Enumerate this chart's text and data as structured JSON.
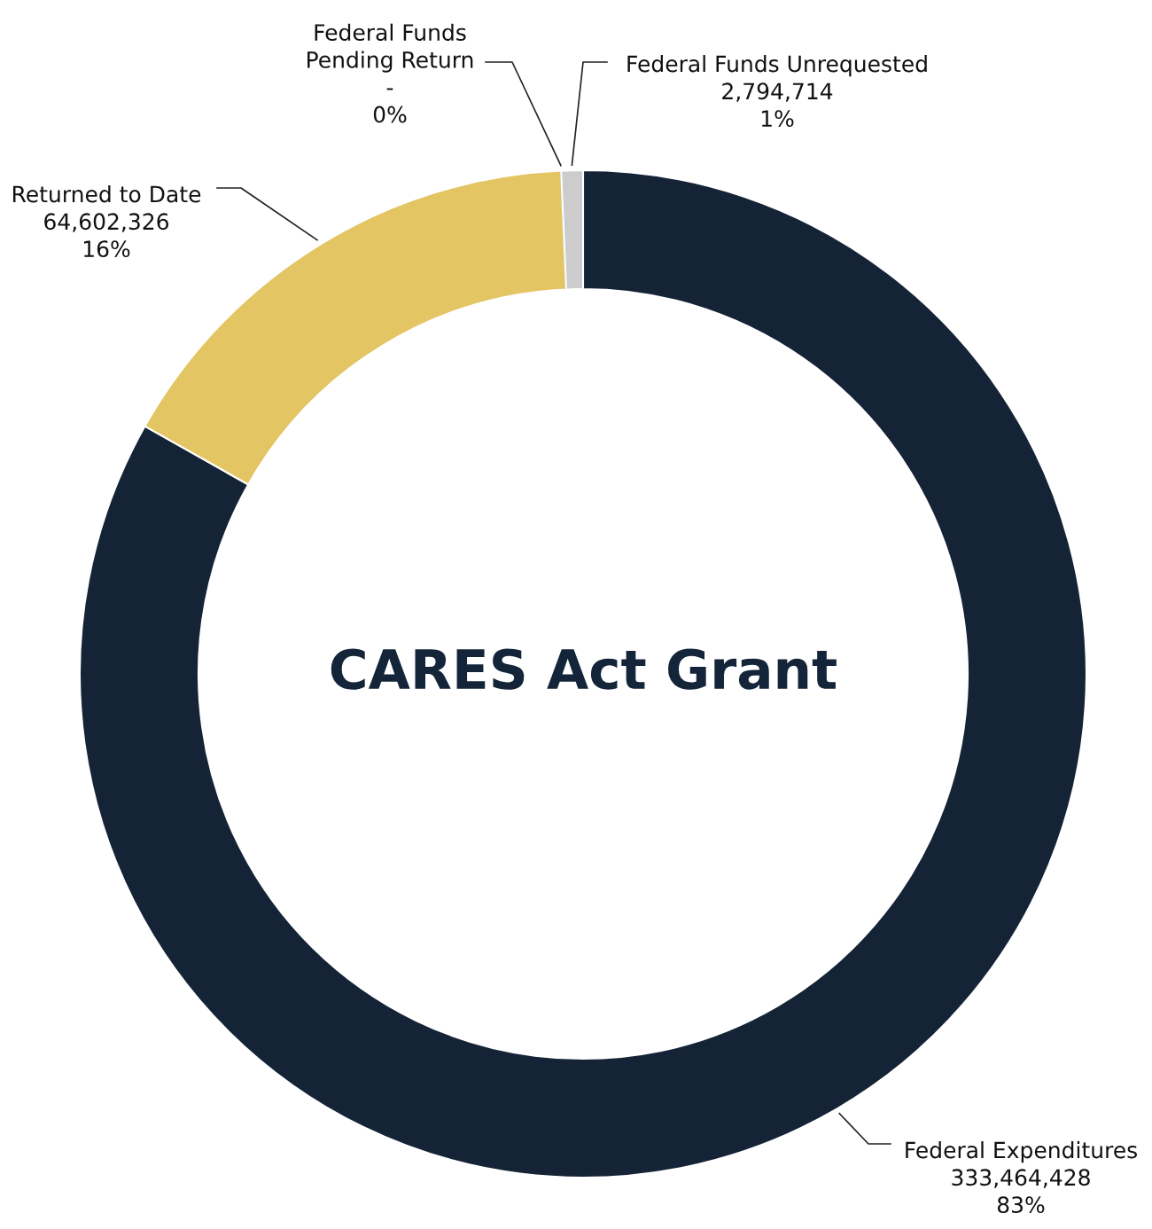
{
  "chart_data": {
    "type": "donut",
    "title": "CARES Act Grant",
    "categories": [
      "Federal Expenditures",
      "Returned to Date",
      "Federal Funds\nPending Return",
      "Federal Funds Unrequested"
    ],
    "values": [
      333464428,
      64602326,
      0,
      2794714
    ],
    "colors": [
      "#142336",
      "#e3c563",
      "#6aa36f",
      "#cccccc"
    ],
    "value_labels": [
      "333,464,428\n83%",
      "64,602,326\n16%",
      "-\n0%",
      "2,794,714\n1%"
    ]
  }
}
